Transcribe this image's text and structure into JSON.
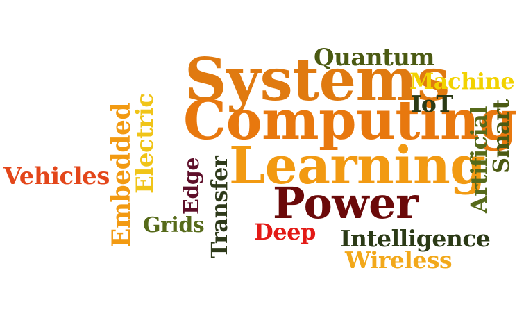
{
  "words": [
    {
      "text": "Systems",
      "color": "#E07A10"
    },
    {
      "text": "Computing",
      "color": "#E8780E"
    },
    {
      "text": "Learning",
      "color": "#F29A12"
    },
    {
      "text": "Power",
      "color": "#6B0A0A"
    },
    {
      "text": "Quantum",
      "color": "#4B5A12"
    },
    {
      "text": "Machine",
      "color": "#F2D200"
    },
    {
      "text": "IoT",
      "color": "#2B3A16"
    },
    {
      "text": "Vehicles",
      "color": "#E3461A"
    },
    {
      "text": "Embedded",
      "color": "#F29A12"
    },
    {
      "text": "Electric",
      "color": "#F0C418"
    },
    {
      "text": "Edge",
      "color": "#5E0F2A"
    },
    {
      "text": "Transfer",
      "color": "#2E3A1A"
    },
    {
      "text": "Grids",
      "color": "#566A1A"
    },
    {
      "text": "Deep",
      "color": "#E31A16"
    },
    {
      "text": "Intelligence",
      "color": "#2B3A16"
    },
    {
      "text": "Wireless",
      "color": "#F2A81A"
    },
    {
      "text": "Artificial",
      "color": "#566A1A"
    },
    {
      "text": "Smart",
      "color": "#4B5A12"
    }
  ]
}
